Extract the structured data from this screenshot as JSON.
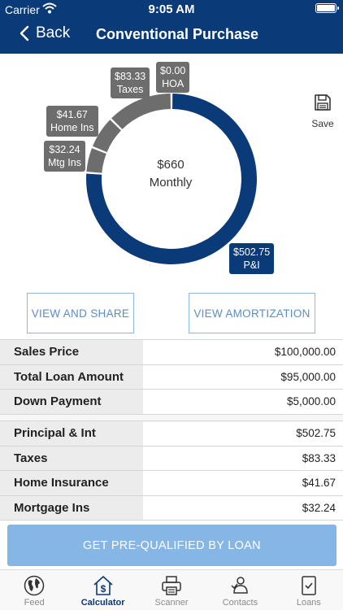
{
  "status_bar": {
    "carrier": "Carrier",
    "time": "9:05 AM"
  },
  "nav": {
    "back_label": "Back",
    "title": "Conventional Purchase"
  },
  "chart": {
    "center_amount": "$660",
    "center_label": "Monthly",
    "save_label": "Save",
    "tags": {
      "hoa_value": "$0.00",
      "hoa_label": "HOA",
      "taxes_value": "$83.33",
      "taxes_label": "Taxes",
      "home_ins_value": "$41.67",
      "home_ins_label": "Home Ins",
      "mtg_ins_value": "$32.24",
      "mtg_ins_label": "Mtg Ins",
      "pi_value": "$502.75",
      "pi_label": "P&I"
    }
  },
  "chart_data": {
    "type": "pie",
    "style": "donut",
    "series": [
      {
        "name": "P&I",
        "value": 502.75,
        "color": "#0a3a78"
      },
      {
        "name": "Mtg Ins",
        "value": 32.24,
        "color": "#6d6d6d"
      },
      {
        "name": "Home Ins",
        "value": 41.67,
        "color": "#6d6d6d"
      },
      {
        "name": "Taxes",
        "value": 83.33,
        "color": "#6d6d6d"
      },
      {
        "name": "HOA",
        "value": 0.0,
        "color": "#6d6d6d"
      }
    ],
    "total": 660
  },
  "buttons": {
    "view_share": "VIEW AND SHARE",
    "view_amortization": "VIEW AMORTIZATION",
    "prequalify": "GET PRE-QUALIFIED BY LOAN"
  },
  "loan_table": [
    {
      "label": "Sales Price",
      "value": "$100,000.00"
    },
    {
      "label": "Total Loan Amount",
      "value": "$95,000.00"
    },
    {
      "label": "Down Payment",
      "value": "$5,000.00"
    }
  ],
  "payment_table": [
    {
      "label": "Principal & Int",
      "value": "$502.75"
    },
    {
      "label": "Taxes",
      "value": "$83.33"
    },
    {
      "label": "Home Insurance",
      "value": "$41.67"
    },
    {
      "label": "Mortgage Ins",
      "value": "$32.24"
    }
  ],
  "tabs": [
    {
      "label": "Feed",
      "icon": "globe-icon"
    },
    {
      "label": "Calculator",
      "icon": "house-dollar-icon",
      "active": true
    },
    {
      "label": "Scanner",
      "icon": "printer-icon"
    },
    {
      "label": "Contacts",
      "icon": "contacts-icon"
    },
    {
      "label": "Loans",
      "icon": "clipboard-check-icon"
    }
  ],
  "colors": {
    "brand": "#0a3a78",
    "segment_gray": "#6d6d6d",
    "button_outline": "#8fb6e0",
    "cta": "#85b6e6"
  }
}
